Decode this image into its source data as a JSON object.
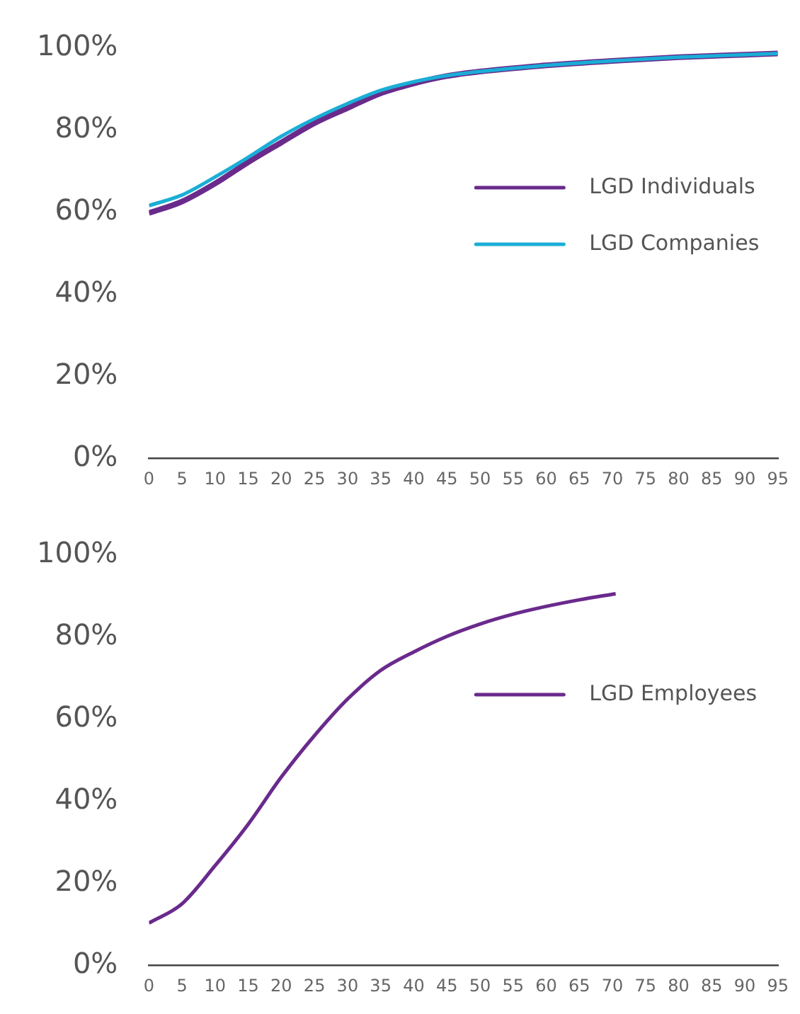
{
  "chart_data": [
    {
      "type": "line",
      "legend": "right",
      "grid": false,
      "marker": "none",
      "line_style": "solid",
      "xlim": [
        0,
        95
      ],
      "xticks": [
        0,
        5,
        10,
        15,
        20,
        25,
        30,
        35,
        40,
        45,
        50,
        55,
        60,
        65,
        70,
        75,
        80,
        85,
        90,
        95
      ],
      "ylim": [
        0,
        100
      ],
      "yticks": [
        {
          "value": 0,
          "label": "0%"
        },
        {
          "value": 20,
          "label": "20%"
        },
        {
          "value": 40,
          "label": "40%"
        },
        {
          "value": 60,
          "label": "60%"
        },
        {
          "value": 80,
          "label": "80%"
        },
        {
          "value": 100,
          "label": "100%"
        }
      ],
      "series": [
        {
          "name": "LGD Individuals",
          "color": "#6a2a8c",
          "x": [
            0,
            5,
            10,
            15,
            20,
            25,
            30,
            35,
            40,
            45,
            50,
            60,
            70,
            80,
            95
          ],
          "values": [
            59.8,
            62.6,
            67,
            72.2,
            77,
            81.7,
            85.4,
            89,
            91.4,
            93.2,
            94.3,
            95.8,
            96.9,
            97.8,
            98.7
          ]
        },
        {
          "name": "LGD Companies",
          "color": "#1aaed6",
          "x": [
            0,
            5,
            10,
            15,
            20,
            25,
            30,
            35,
            40,
            45,
            50,
            60,
            70,
            80,
            95
          ],
          "values": [
            61.6,
            64.2,
            68.6,
            73.4,
            78.5,
            82.8,
            86.5,
            89.7,
            91.8,
            93.3,
            94.3,
            95.8,
            96.9,
            97.8,
            98.7
          ]
        }
      ]
    },
    {
      "type": "line",
      "legend": "right",
      "grid": false,
      "marker": "none",
      "line_style": "solid",
      "xlim": [
        0,
        95
      ],
      "xticks": [
        0,
        5,
        10,
        15,
        20,
        25,
        30,
        35,
        40,
        45,
        50,
        55,
        60,
        65,
        70,
        75,
        80,
        85,
        90,
        95
      ],
      "ylim": [
        0,
        100
      ],
      "yticks": [
        {
          "value": 0,
          "label": "0%"
        },
        {
          "value": 20,
          "label": "20%"
        },
        {
          "value": 40,
          "label": "40%"
        },
        {
          "value": 60,
          "label": "60%"
        },
        {
          "value": 80,
          "label": "80%"
        },
        {
          "value": 100,
          "label": "100%"
        }
      ],
      "series": [
        {
          "name": "LGD Employees",
          "color": "#6a2a8c",
          "x": [
            0,
            5,
            10,
            15,
            20,
            25,
            30,
            35,
            40,
            45,
            50,
            55,
            60,
            65,
            70.5
          ],
          "values": [
            10.3,
            15,
            24.3,
            34.4,
            45.9,
            56,
            64.9,
            71.9,
            76.4,
            80.2,
            83.2,
            85.6,
            87.5,
            89.1,
            90.6
          ]
        }
      ]
    }
  ]
}
